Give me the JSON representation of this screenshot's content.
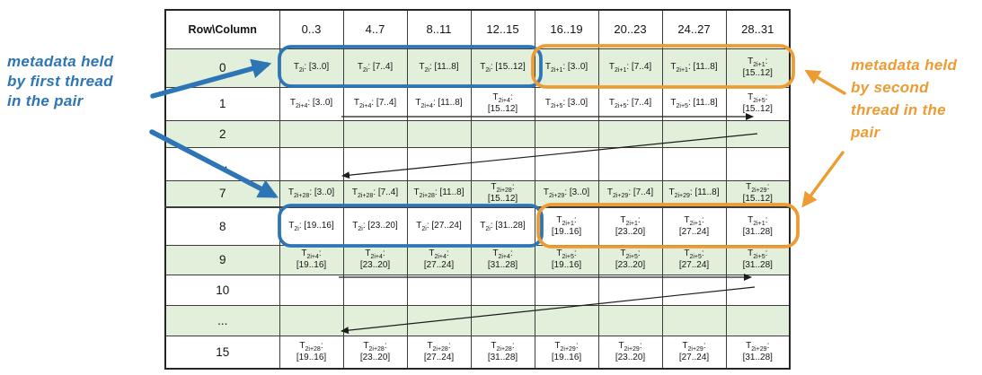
{
  "colors": {
    "blue": "#2e75b6",
    "orange": "#ed9b33",
    "row_shade": "#e2efda"
  },
  "annotations": {
    "left": {
      "lines": [
        "metadata held",
        "by first thread",
        "in the pair"
      ]
    },
    "right": {
      "lines": [
        "metadata held",
        "by second",
        "thread in the",
        "pair"
      ]
    }
  },
  "table": {
    "corner_header": "Row\\Column",
    "thread_prefix": "T",
    "column_headers": [
      "0..3",
      "4..7",
      "8..11",
      "12..15",
      "16..19",
      "20..23",
      "24..27",
      "28..31"
    ],
    "rows": [
      {
        "label": "0",
        "shaded": true,
        "cells": [
          {
            "sub": "2i",
            "post": ": [3..0]"
          },
          {
            "sub": "2i",
            "post": ": [7..4]"
          },
          {
            "sub": "2i",
            "post": ": [11..8]"
          },
          {
            "sub": "2i",
            "post": ": [15..12]"
          },
          {
            "sub": "2i+1",
            "post": ": [3..0]"
          },
          {
            "sub": "2i+1",
            "post": ": [7..4]"
          },
          {
            "sub": "2i+1",
            "post": ": [11..8]"
          },
          {
            "sub": "2i+1",
            "post": ":\n[15..12]"
          }
        ]
      },
      {
        "label": "1",
        "shaded": false,
        "cells": [
          {
            "sub": "2i+4",
            "post": ": [3..0]"
          },
          {
            "sub": "2i+4",
            "post": ": [7..4]"
          },
          {
            "sub": "2i+4",
            "post": ": [11..8]"
          },
          {
            "sub": "2i+4",
            "post": ":\n[15..12]"
          },
          {
            "sub": "2i+5",
            "post": ": [3..0]"
          },
          {
            "sub": "2i+5",
            "post": ": [7..4]"
          },
          {
            "sub": "2i+5",
            "post": ": [11..8]"
          },
          {
            "sub": "2i+5",
            "post": ":\n[15..12]"
          }
        ]
      },
      {
        "label": "2",
        "shaded": true,
        "cells": null
      },
      {
        "label": "...",
        "shaded": false,
        "cells": null
      },
      {
        "label": "7",
        "shaded": true,
        "cells": [
          {
            "sub": "2i+28",
            "post": ": [3..0]"
          },
          {
            "sub": "2i+28",
            "post": ": [7..4]"
          },
          {
            "sub": "2i+28",
            "post": ": [11..8]"
          },
          {
            "sub": "2i+28",
            "post": ":\n[15..12]"
          },
          {
            "sub": "2i+29",
            "post": ": [3..0]"
          },
          {
            "sub": "2i+29",
            "post": ": [7..4]"
          },
          {
            "sub": "2i+29",
            "post": ": [11..8]"
          },
          {
            "sub": "2i+29",
            "post": ":\n[15..12]"
          }
        ]
      },
      {
        "label": "8",
        "shaded": false,
        "cells": [
          {
            "sub": "2i",
            "post": ": [19..16]"
          },
          {
            "sub": "2i",
            "post": ": [23..20]"
          },
          {
            "sub": "2i",
            "post": ": [27..24]"
          },
          {
            "sub": "2i",
            "post": ": [31..28]"
          },
          {
            "sub": "2i+1",
            "post": ":\n[19..16]"
          },
          {
            "sub": "2i+1",
            "post": ":\n[23..20]"
          },
          {
            "sub": "2i+1",
            "post": ":\n[27..24]"
          },
          {
            "sub": "2i+1",
            "post": ":\n[31..28]"
          }
        ]
      },
      {
        "label": "9",
        "shaded": true,
        "cells": [
          {
            "sub": "2i+4",
            "post": ":\n[19..16]"
          },
          {
            "sub": "2i+4",
            "post": ":\n[23..20]"
          },
          {
            "sub": "2i+4",
            "post": ":\n[27..24]"
          },
          {
            "sub": "2i+4",
            "post": ":\n[31..28]"
          },
          {
            "sub": "2i+5",
            "post": ":\n[19..16]"
          },
          {
            "sub": "2i+5",
            "post": ":\n[23..20]"
          },
          {
            "sub": "2i+5",
            "post": ":\n[27..24]"
          },
          {
            "sub": "2i+5",
            "post": ":\n[31..28]"
          }
        ]
      },
      {
        "label": "10",
        "shaded": false,
        "cells": null
      },
      {
        "label": "...",
        "shaded": true,
        "cells": null
      },
      {
        "label": "15",
        "shaded": false,
        "cells": [
          {
            "sub": "2i+28",
            "post": ":\n[19..16]"
          },
          {
            "sub": "2i+28",
            "post": ":\n[23..20]"
          },
          {
            "sub": "2i+28",
            "post": ":\n[27..24]"
          },
          {
            "sub": "2i+28",
            "post": ":\n[31..28]"
          },
          {
            "sub": "2i+29",
            "post": ":\n[19..16]"
          },
          {
            "sub": "2i+29",
            "post": ":\n[23..20]"
          },
          {
            "sub": "2i+29",
            "post": ":\n[27..24]"
          },
          {
            "sub": "2i+29",
            "post": ":\n[31..28]"
          }
        ]
      }
    ]
  }
}
